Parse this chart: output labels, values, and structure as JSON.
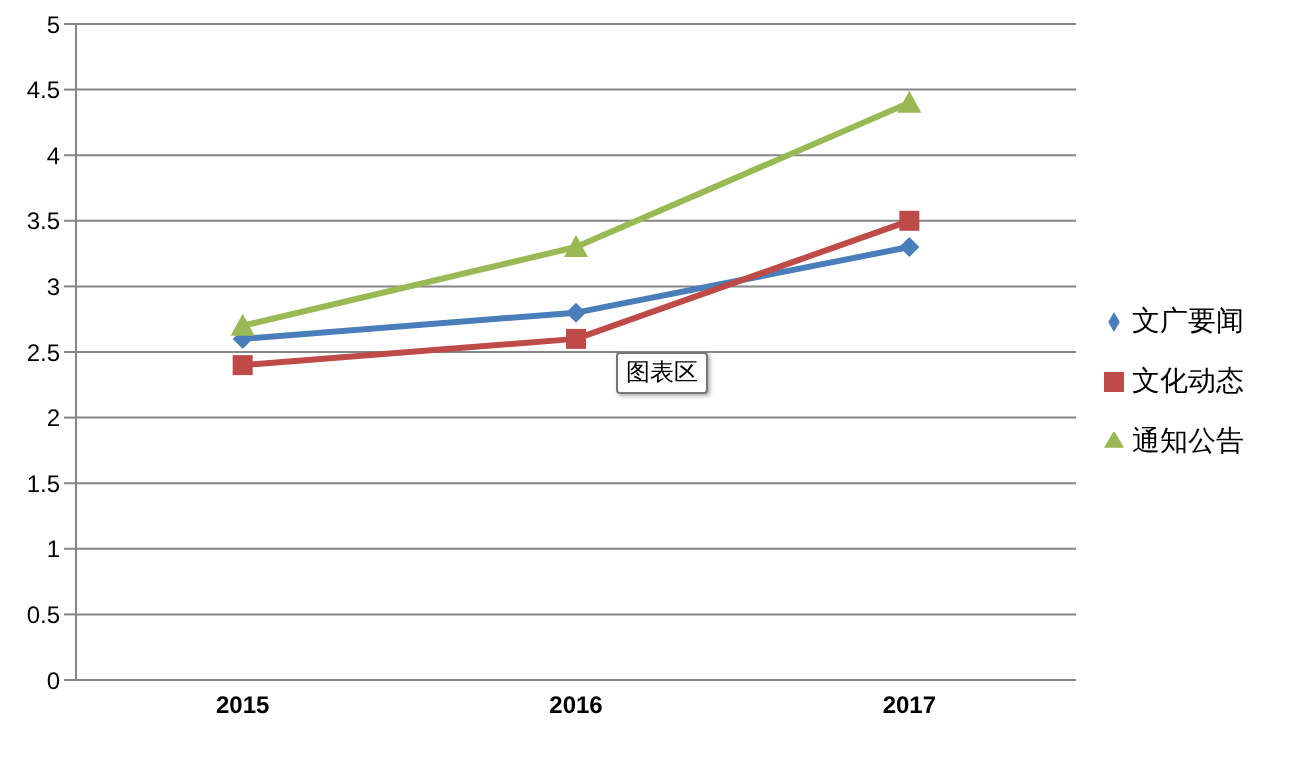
{
  "chart_data": {
    "type": "line",
    "categories": [
      "2015",
      "2016",
      "2017"
    ],
    "series": [
      {
        "name": "文广要闻",
        "color": "#4a7ebb",
        "marker": "diamond",
        "values": [
          2.6,
          2.8,
          3.3
        ]
      },
      {
        "name": "文化动态",
        "color": "#be4b48",
        "marker": "square",
        "values": [
          2.4,
          2.6,
          3.5
        ]
      },
      {
        "name": "通知公告",
        "color": "#98b954",
        "marker": "triangle",
        "values": [
          2.7,
          3.3,
          4.4
        ]
      }
    ],
    "ylim": [
      0,
      5
    ],
    "yticks": [
      0,
      0.5,
      1,
      1.5,
      2,
      2.5,
      3,
      3.5,
      4,
      4.5,
      5
    ],
    "grid": "y",
    "legend": "right",
    "annotations": [
      "图表区"
    ]
  }
}
